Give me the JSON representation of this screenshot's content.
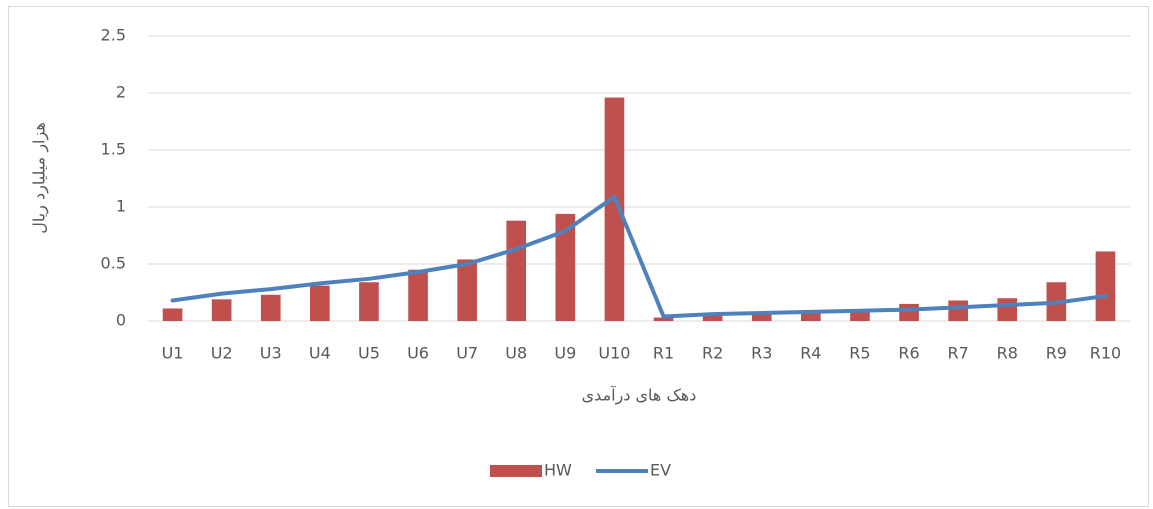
{
  "chart_data": {
    "type": "bar-line",
    "y_label": "هزار میلیارد ریال",
    "x_label": "دهک های درآمدی",
    "categories": [
      "U1",
      "U2",
      "U3",
      "U4",
      "U5",
      "U6",
      "U7",
      "U8",
      "U9",
      "U10",
      "R1",
      "R2",
      "R3",
      "R4",
      "R5",
      "R6",
      "R7",
      "R8",
      "R9",
      "R10"
    ],
    "series": [
      {
        "name": "HW",
        "type": "bar",
        "color": "#c0504d",
        "values": [
          0.11,
          0.19,
          0.23,
          0.31,
          0.34,
          0.45,
          0.54,
          0.88,
          0.94,
          1.96,
          0.03,
          0.06,
          0.07,
          0.08,
          0.09,
          0.15,
          0.18,
          0.2,
          0.34,
          0.61
        ]
      },
      {
        "name": "EV",
        "type": "line",
        "color": "#4f81bd",
        "values": [
          0.18,
          0.24,
          0.28,
          0.33,
          0.37,
          0.43,
          0.5,
          0.63,
          0.79,
          1.09,
          0.04,
          0.06,
          0.07,
          0.08,
          0.09,
          0.1,
          0.12,
          0.14,
          0.16,
          0.22
        ]
      }
    ],
    "ylim": [
      0,
      2.5
    ],
    "yticks": [
      0,
      0.5,
      1,
      1.5,
      2,
      2.5
    ],
    "grid": true,
    "legend": "bottom"
  }
}
